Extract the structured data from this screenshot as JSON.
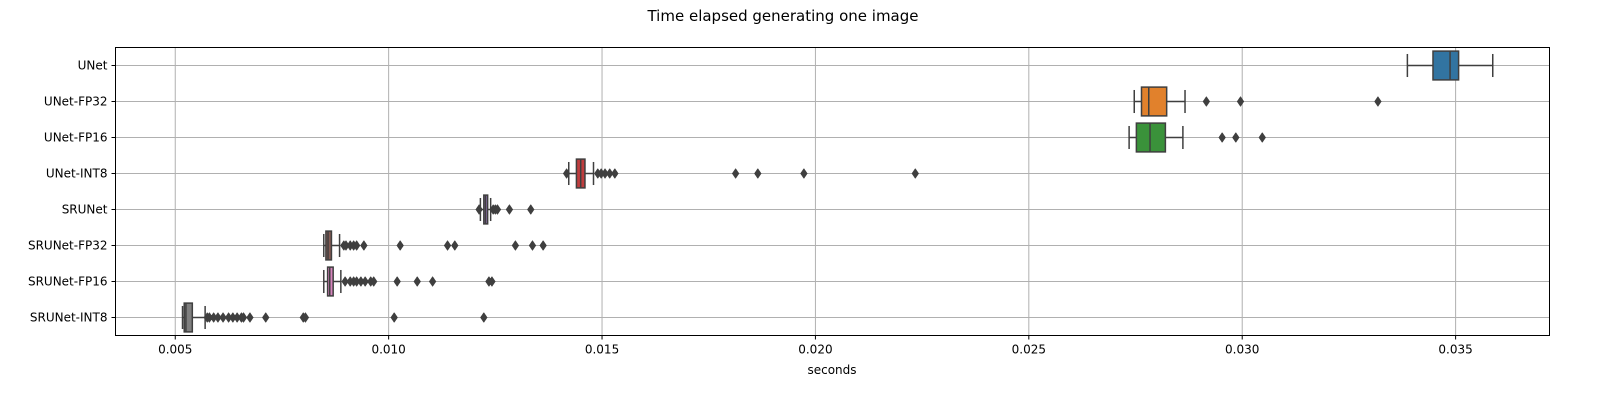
{
  "chart_data": {
    "type": "boxplot",
    "orientation": "horizontal",
    "title": "Time elapsed generating one image",
    "xlabel": "seconds",
    "ylabel": "",
    "xlim": [
      0.0036,
      0.0372
    ],
    "xticks": [
      0.005,
      0.01,
      0.015,
      0.02,
      0.025,
      0.03,
      0.035
    ],
    "xtick_labels": [
      "0.005",
      "0.010",
      "0.015",
      "0.020",
      "0.025",
      "0.030",
      "0.035"
    ],
    "grid": true,
    "categories": [
      "UNet",
      "UNet-FP32",
      "UNet-FP16",
      "UNet-INT8",
      "SRUNet",
      "SRUNet-FP32",
      "SRUNet-FP16",
      "SRUNet-INT8"
    ],
    "series": [
      {
        "name": "UNet",
        "color": "#3274a1",
        "whisker_low": 0.03387,
        "q1": 0.03447,
        "median": 0.03487,
        "q3": 0.03507,
        "whisker_high": 0.03587,
        "outliers": []
      },
      {
        "name": "UNet-FP32",
        "color": "#e1812c",
        "whisker_low": 0.02747,
        "q1": 0.02764,
        "median": 0.02781,
        "q3": 0.02823,
        "whisker_high": 0.02866,
        "outliers": [
          0.02916,
          0.02996,
          0.03318
        ]
      },
      {
        "name": "UNet-FP16",
        "color": "#3a923a",
        "whisker_low": 0.02735,
        "q1": 0.02752,
        "median": 0.02784,
        "q3": 0.0282,
        "whisker_high": 0.02861,
        "outliers": [
          0.02953,
          0.02985,
          0.03047
        ]
      },
      {
        "name": "UNet-INT8",
        "color": "#c03d3e",
        "whisker_low": 0.01422,
        "q1": 0.0144,
        "median": 0.0145,
        "q3": 0.0146,
        "whisker_high": 0.0148,
        "outliers": [
          0.01417,
          0.0149,
          0.01498,
          0.01507,
          0.01518,
          0.0153,
          0.01813,
          0.01865,
          0.01973,
          0.02234
        ]
      },
      {
        "name": "SRUNet",
        "color": "#9372b2",
        "whisker_low": 0.01215,
        "q1": 0.01223,
        "median": 0.01227,
        "q3": 0.01232,
        "whisker_high": 0.01239,
        "outliers": [
          0.01212,
          0.01245,
          0.0125,
          0.01255,
          0.01283,
          0.01333
        ]
      },
      {
        "name": "SRUNet-FP32",
        "color": "#845b53",
        "whisker_low": 0.00848,
        "q1": 0.00853,
        "median": 0.00858,
        "q3": 0.00866,
        "whisker_high": 0.00885,
        "outliers": [
          0.00895,
          0.009,
          0.0091,
          0.00918,
          0.00925,
          0.00942,
          0.01027,
          0.01138,
          0.01155,
          0.01297,
          0.01337,
          0.01362
        ]
      },
      {
        "name": "SRUNet-FP16",
        "color": "#d684bd",
        "whisker_low": 0.00848,
        "q1": 0.00857,
        "median": 0.00862,
        "q3": 0.0087,
        "whisker_high": 0.00888,
        "outliers": [
          0.00898,
          0.0091,
          0.00918,
          0.00925,
          0.00935,
          0.00945,
          0.00958,
          0.00965,
          0.0102,
          0.01067,
          0.01103,
          0.01235,
          0.01242
        ]
      },
      {
        "name": "SRUNet-INT8",
        "color": "#7f7f7f",
        "whisker_low": 0.00517,
        "q1": 0.00521,
        "median": 0.00525,
        "q3": 0.0054,
        "whisker_high": 0.0057,
        "outliers": [
          0.00575,
          0.0058,
          0.0059,
          0.006,
          0.00612,
          0.00625,
          0.00635,
          0.00645,
          0.00655,
          0.0066,
          0.00675,
          0.00712,
          0.008,
          0.00805,
          0.01013,
          0.01223
        ]
      }
    ]
  }
}
